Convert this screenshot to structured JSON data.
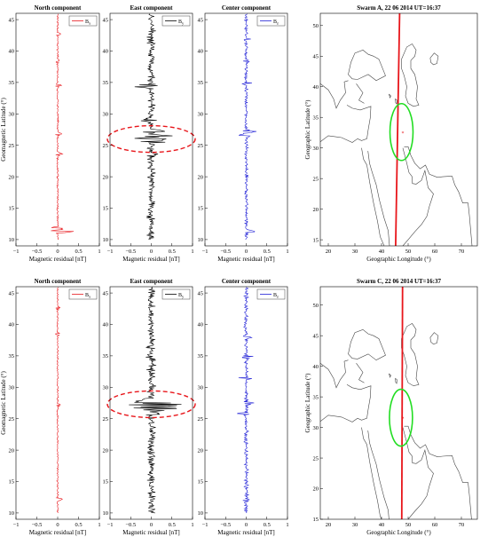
{
  "chart_data": [
    {
      "type": "line",
      "panel": "swarm-a-north",
      "title": "North component",
      "xlabel": "Magnetic residual [nT]",
      "ylabel": "Geomagnetic Latitude (°)",
      "xlim": [
        -1,
        1
      ],
      "ylim": [
        9,
        46
      ],
      "xticks": [
        "−1",
        "−0.5",
        "0",
        "0.5",
        "1"
      ],
      "yticks": [
        "10",
        "15",
        "20",
        "25",
        "30",
        "35",
        "40",
        "45"
      ],
      "legend": "top-right",
      "series": [
        {
          "name": "Bx",
          "color": "#e8161b"
        }
      ],
      "trace": {
        "amp": 0.03,
        "bursts": [
          [
            11.3,
            0.38
          ],
          [
            11.8,
            -0.22
          ],
          [
            23.6,
            0.12
          ],
          [
            26.8,
            0.1
          ],
          [
            34.5,
            0.09
          ],
          [
            38.3,
            0.06
          ],
          [
            42.7,
            0.07
          ]
        ]
      }
    },
    {
      "type": "line",
      "panel": "swarm-a-east",
      "title": "East component",
      "xlabel": "Magnetic residual [nT]",
      "ylabel": "",
      "xlim": [
        -1,
        1
      ],
      "ylim": [
        9,
        46
      ],
      "xticks": [
        "−1",
        "−0.5",
        "0",
        "0.5",
        "1"
      ],
      "yticks": [
        "10",
        "15",
        "20",
        "25",
        "30",
        "35",
        "40",
        "45"
      ],
      "legend": "top-right",
      "series": [
        {
          "name": "By",
          "color": "#000000"
        }
      ],
      "highlight": {
        "lat": 26,
        "color": "#e8161b"
      },
      "trace": {
        "amp": 0.13,
        "bursts": [
          [
            34.3,
            0.45
          ],
          [
            34.5,
            -0.4
          ],
          [
            26.5,
            0.5
          ],
          [
            26.0,
            -0.48
          ],
          [
            25.6,
            0.42
          ],
          [
            27.2,
            0.35
          ],
          [
            29.0,
            -0.3
          ],
          [
            23.5,
            -0.28
          ]
        ]
      }
    },
    {
      "type": "line",
      "panel": "swarm-a-center",
      "title": "Center component",
      "xlabel": "Magnetic residual [nT]",
      "ylabel": "",
      "xlim": [
        -1,
        1
      ],
      "ylim": [
        9,
        46
      ],
      "xticks": [
        "−1",
        "−0.5",
        "0",
        "0.5",
        "1"
      ],
      "yticks": [
        "10",
        "15",
        "20",
        "25",
        "30",
        "35",
        "40",
        "45"
      ],
      "legend": "top-right",
      "series": [
        {
          "name": "Bz",
          "color": "#1f1fd6"
        }
      ],
      "trace": {
        "amp": 0.06,
        "bursts": [
          [
            11.3,
            0.22
          ],
          [
            26.6,
            -0.2
          ],
          [
            27.2,
            0.22
          ],
          [
            34.8,
            0.18
          ],
          [
            38.4,
            0.1
          ],
          [
            41.8,
            0.1
          ]
        ]
      }
    },
    {
      "type": "scatter",
      "panel": "swarm-a-map",
      "title": "Swarm A, 22 06 2014 UT=16:37",
      "xlabel": "Geographic Longitude (°)",
      "ylabel": "Geographic Latitude (°)",
      "xlim": [
        17,
        76
      ],
      "ylim": [
        14,
        52
      ],
      "xticks": [
        "20",
        "30",
        "40",
        "50",
        "60",
        "70"
      ],
      "yticks": [
        "15",
        "20",
        "25",
        "30",
        "35",
        "40",
        "45",
        "50"
      ],
      "track": {
        "color": "#e8161b",
        "points": [
          [
            45.3,
            14
          ],
          [
            46.8,
            52
          ]
        ]
      },
      "epicenter": {
        "lon": 48.0,
        "lat": 32.6,
        "color": "#e8161b"
      },
      "region": {
        "lon": 47.5,
        "lat": 32.6,
        "color": "#22dd22"
      }
    },
    {
      "type": "line",
      "panel": "swarm-c-north",
      "title": "North component",
      "xlabel": "Magnetic residual [nT]",
      "ylabel": "Geomagnetic Latitude (°)",
      "xlim": [
        -1,
        1
      ],
      "ylim": [
        9,
        46
      ],
      "xticks": [
        "−1",
        "−0.5",
        "0",
        "0.5",
        "1"
      ],
      "yticks": [
        "10",
        "15",
        "20",
        "25",
        "30",
        "35",
        "40",
        "45"
      ],
      "legend": "top-right",
      "series": [
        {
          "name": "Bx",
          "color": "#e8161b"
        }
      ],
      "trace": {
        "amp": 0.025,
        "bursts": [
          [
            12.2,
            0.1
          ],
          [
            27.2,
            0.08
          ],
          [
            38.5,
            0.07
          ],
          [
            42.6,
            0.07
          ]
        ]
      }
    },
    {
      "type": "line",
      "panel": "swarm-c-east",
      "title": "East component",
      "xlabel": "Magnetic residual [nT]",
      "ylabel": "",
      "xlim": [
        -1,
        1
      ],
      "ylim": [
        9,
        46
      ],
      "xticks": [
        "−1",
        "−0.5",
        "0",
        "0.5",
        "1"
      ],
      "yticks": [
        "10",
        "15",
        "20",
        "25",
        "30",
        "35",
        "40",
        "45"
      ],
      "legend": "top-right",
      "series": [
        {
          "name": "By",
          "color": "#000000"
        }
      ],
      "highlight": {
        "lat": 27.3,
        "color": "#e8161b"
      },
      "trace": {
        "amp": 0.15,
        "bursts": [
          [
            27.3,
            0.7
          ],
          [
            27.0,
            -0.62
          ],
          [
            26.7,
            0.6
          ],
          [
            27.6,
            -0.5
          ],
          [
            26.4,
            0.45
          ],
          [
            28.0,
            0.4
          ],
          [
            25.8,
            -0.35
          ]
        ]
      }
    },
    {
      "type": "line",
      "panel": "swarm-c-center",
      "title": "Center component",
      "xlabel": "Magnetic residual [nT]",
      "ylabel": "",
      "xlim": [
        -1,
        1
      ],
      "ylim": [
        9,
        46
      ],
      "xticks": [
        "−1",
        "−0.5",
        "0",
        "0.5",
        "1"
      ],
      "yticks": [
        "10",
        "15",
        "20",
        "25",
        "30",
        "35",
        "40",
        "45"
      ],
      "legend": "top-right",
      "series": [
        {
          "name": "Bz",
          "color": "#1f1fd6"
        }
      ],
      "trace": {
        "amp": 0.07,
        "bursts": [
          [
            25.8,
            -0.2
          ],
          [
            27.5,
            0.18
          ],
          [
            31.4,
            -0.2
          ],
          [
            34.8,
            0.18
          ],
          [
            37.9,
            0.12
          ],
          [
            12.0,
            0.1
          ]
        ]
      }
    },
    {
      "type": "scatter",
      "panel": "swarm-c-map",
      "title": "Swarm C, 22 06 2014 UT=16:37",
      "xlabel": "Geographic Longitude (°)",
      "ylabel": "Geographic Latitude (°)",
      "xlim": [
        17,
        76
      ],
      "ylim": [
        15,
        53
      ],
      "xticks": [
        "20",
        "30",
        "40",
        "50",
        "60",
        "70"
      ],
      "yticks": [
        "15",
        "20",
        "25",
        "30",
        "35",
        "40",
        "45",
        "50"
      ],
      "track": {
        "color": "#e8161b",
        "points": [
          [
            47.6,
            15
          ],
          [
            47.9,
            53
          ]
        ]
      },
      "epicenter": {
        "lon": 48.0,
        "lat": 31.6,
        "color": "#e8161b"
      },
      "region": {
        "lon": 47.3,
        "lat": 31.6,
        "color": "#22dd22"
      }
    }
  ]
}
